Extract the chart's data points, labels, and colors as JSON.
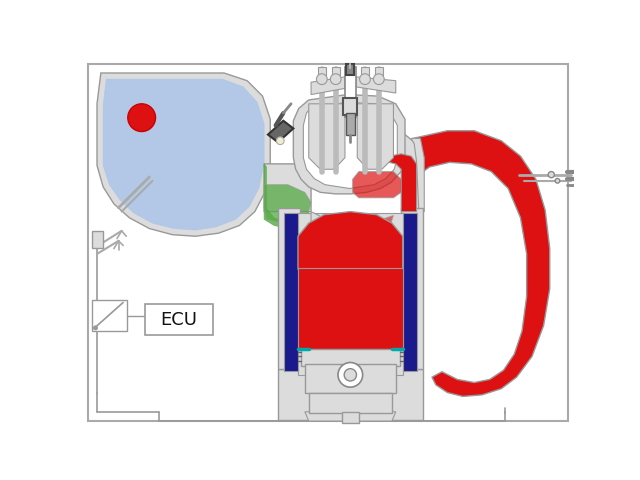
{
  "bg_color": "#ffffff",
  "outline_color": "#999999",
  "red_color": "#dd1111",
  "blue_color": "#1a1a8c",
  "light_blue": "#aec6e8",
  "green_color": "#55aa44",
  "gray_fill": "#c8c8c8",
  "light_gray": "#dcdcdc",
  "dark_gray": "#888888",
  "teal": "#00aaaa",
  "ecu_label": "ECU",
  "border_color": "#aaaaaa"
}
